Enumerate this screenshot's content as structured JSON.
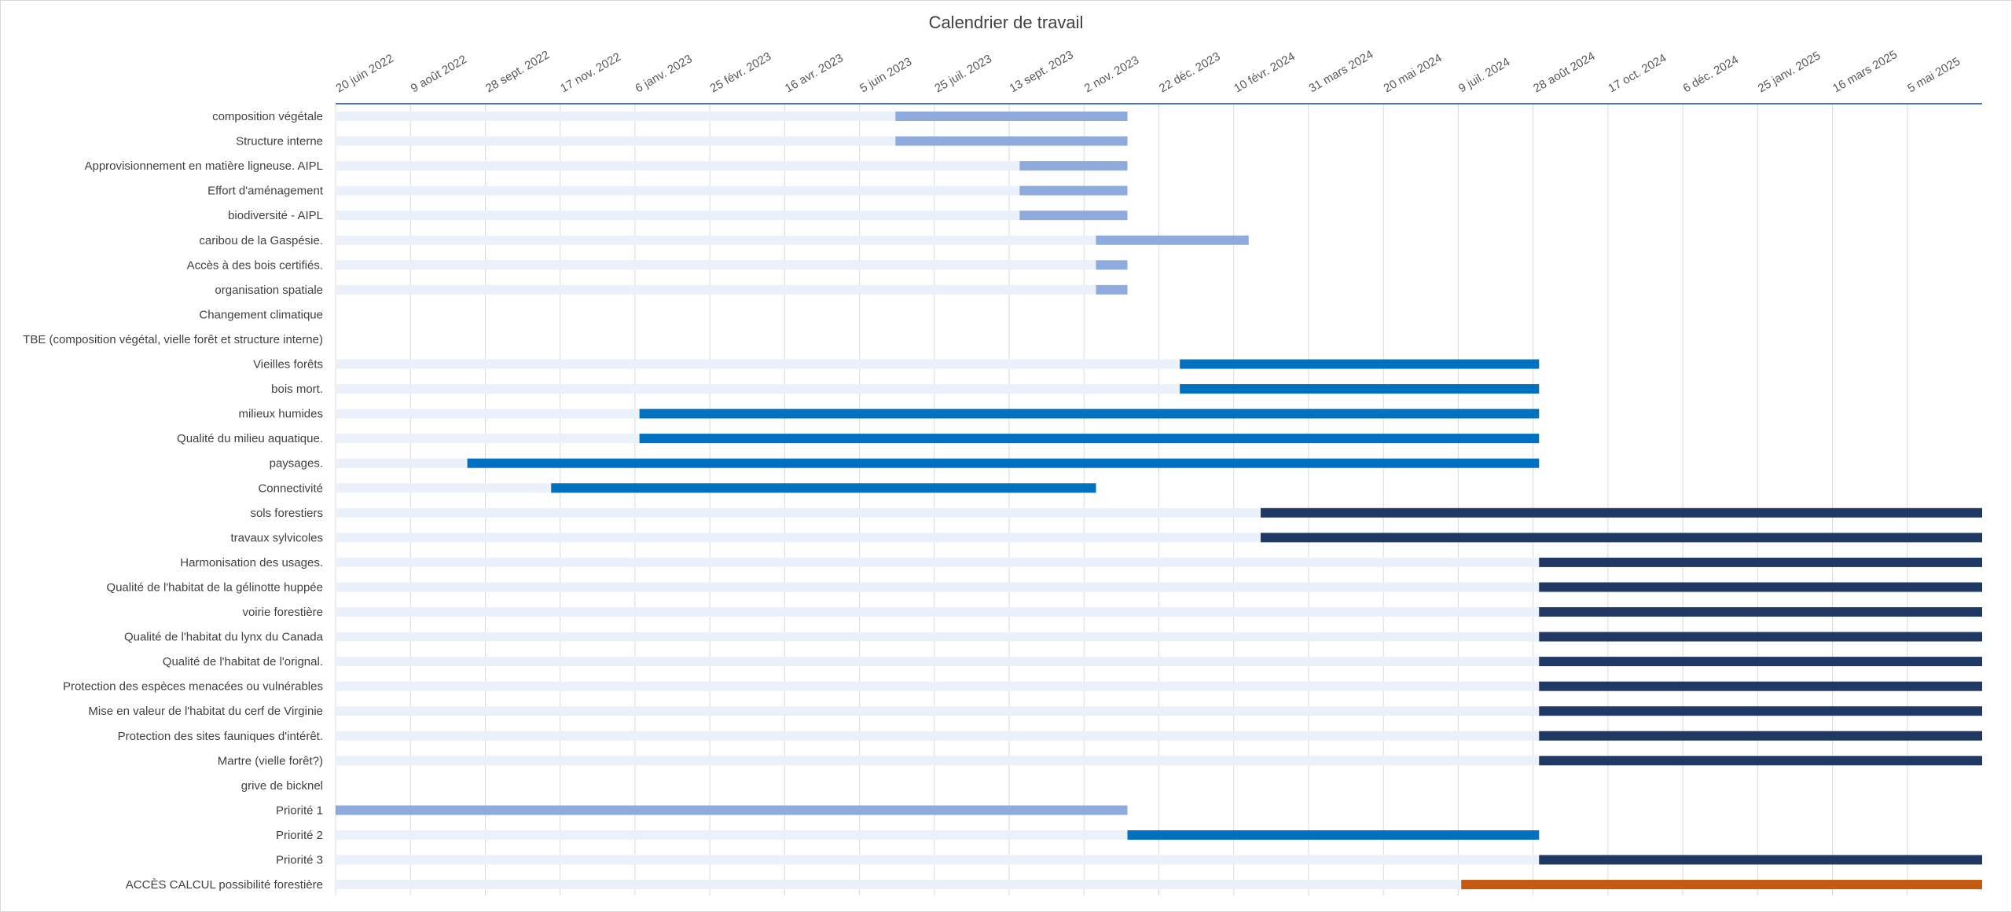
{
  "chart_data": {
    "type": "bar",
    "title": "Calendrier de travail",
    "orientation": "horizontal-gantt",
    "x_axis": {
      "position": "top",
      "ticks": [
        "20 juin 2022",
        "9 août 2022",
        "28 sept. 2022",
        "17 nov. 2022",
        "6 janv. 2023",
        "25 févr. 2023",
        "16 avr. 2023",
        "5 juin 2023",
        "25 juil. 2023",
        "13 sept. 2023",
        "2 nov. 2023",
        "22 déc. 2023",
        "10 févr. 2024",
        "31 mars 2024",
        "20 mai 2024",
        "9 juil. 2024",
        "28 août 2024",
        "17 oct. 2024",
        "6 déc. 2024",
        "25 janv. 2025",
        "16 mars 2025",
        "5 mai 2025"
      ],
      "range": [
        "2022-06-20",
        "2025-06-24"
      ]
    },
    "grid": true,
    "legend": "none",
    "colors": {
      "priorite1": "#8faadc",
      "priorite2": "#0070c0",
      "priorite3": "#203864",
      "acces": "#c55a11",
      "track": "#eaf1fb",
      "axis": "#4472c4"
    },
    "tasks": [
      {
        "label": "composition végétale",
        "start": "2023-06-29",
        "end": "2023-12-01",
        "color": "priorite1"
      },
      {
        "label": "Structure interne",
        "start": "2023-06-29",
        "end": "2023-12-01",
        "color": "priorite1"
      },
      {
        "label": "Approvisionnement en matière ligneuse. AIPL",
        "start": "2023-09-20",
        "end": "2023-12-01",
        "color": "priorite1"
      },
      {
        "label": "Effort d'aménagement",
        "start": "2023-09-20",
        "end": "2023-12-01",
        "color": "priorite1"
      },
      {
        "label": "biodiversité - AIPL",
        "start": "2023-09-20",
        "end": "2023-12-01",
        "color": "priorite1"
      },
      {
        "label": "caribou de la Gaspésie.",
        "start": "2023-11-10",
        "end": "2024-02-20",
        "color": "priorite1"
      },
      {
        "label": "Accès à des bois certifiés.",
        "start": "2023-11-10",
        "end": "2023-12-01",
        "color": "priorite1"
      },
      {
        "label": "organisation spatiale",
        "start": "2023-11-10",
        "end": "2023-12-01",
        "color": "priorite1"
      },
      {
        "label": "Changement climatique",
        "start": null,
        "end": null,
        "color": "priorite1"
      },
      {
        "label": "TBE (composition végétal, vielle forêt et structure interne)",
        "start": null,
        "end": null,
        "color": "priorite1"
      },
      {
        "label": "Vieilles forêts",
        "start": "2024-01-05",
        "end": "2024-09-01",
        "color": "priorite2"
      },
      {
        "label": "bois mort.",
        "start": "2024-01-05",
        "end": "2024-09-01",
        "color": "priorite2"
      },
      {
        "label": "milieux humides",
        "start": "2023-01-09",
        "end": "2024-09-01",
        "color": "priorite2"
      },
      {
        "label": "Qualité du milieu aquatique.",
        "start": "2023-01-09",
        "end": "2024-09-01",
        "color": "priorite2"
      },
      {
        "label": "paysages.",
        "start": "2022-09-16",
        "end": "2024-09-01",
        "color": "priorite2"
      },
      {
        "label": "Connectivité",
        "start": "2022-11-11",
        "end": "2023-11-10",
        "color": "priorite2"
      },
      {
        "label": "sols forestiers",
        "start": "2024-02-28",
        "end": "2025-06-24",
        "color": "priorite3"
      },
      {
        "label": "travaux sylvicoles",
        "start": "2024-02-28",
        "end": "2025-06-24",
        "color": "priorite3"
      },
      {
        "label": "Harmonisation des usages.",
        "start": "2024-09-01",
        "end": "2025-06-24",
        "color": "priorite3"
      },
      {
        "label": "Qualité de l'habitat de la gélinotte huppée",
        "start": "2024-09-01",
        "end": "2025-06-24",
        "color": "priorite3"
      },
      {
        "label": "voirie forestière",
        "start": "2024-09-01",
        "end": "2025-06-24",
        "color": "priorite3"
      },
      {
        "label": "Qualité de l'habitat du lynx du Canada",
        "start": "2024-09-01",
        "end": "2025-06-24",
        "color": "priorite3"
      },
      {
        "label": "Qualité de l'habitat de l'orignal.",
        "start": "2024-09-01",
        "end": "2025-06-24",
        "color": "priorite3"
      },
      {
        "label": "Protection des espèces menacées ou vulnérables",
        "start": "2024-09-01",
        "end": "2025-06-24",
        "color": "priorite3"
      },
      {
        "label": "Mise en valeur de l'habitat du cerf de Virginie",
        "start": "2024-09-01",
        "end": "2025-06-24",
        "color": "priorite3"
      },
      {
        "label": "Protection des sites fauniques d'intérêt.",
        "start": "2024-09-01",
        "end": "2025-06-24",
        "color": "priorite3"
      },
      {
        "label": "Martre (vielle forêt?)",
        "start": "2024-09-01",
        "end": "2025-06-24",
        "color": "priorite3"
      },
      {
        "label": "grive de bicknel",
        "start": null,
        "end": null,
        "color": "priorite3"
      },
      {
        "label": "Priorité 1",
        "start": "2022-06-20",
        "end": "2023-12-01",
        "color": "priorite1"
      },
      {
        "label": "Priorité 2",
        "start": "2023-12-01",
        "end": "2024-09-01",
        "color": "priorite2"
      },
      {
        "label": "Priorité 3",
        "start": "2024-09-01",
        "end": "2025-06-24",
        "color": "priorite3"
      },
      {
        "label": "ACCÈS CALCUL possibilité forestière",
        "start": "2024-07-11",
        "end": "2025-06-24",
        "color": "acces"
      }
    ]
  }
}
